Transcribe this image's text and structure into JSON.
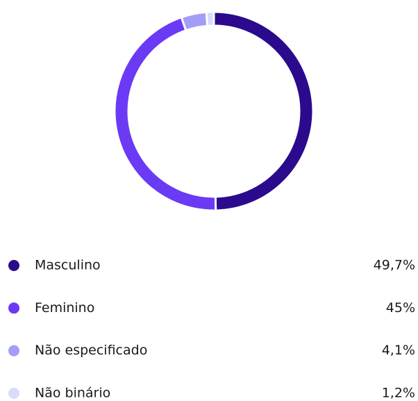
{
  "chart_data": {
    "type": "donut",
    "categories": [
      "Masculino",
      "Feminino",
      "Não especificado",
      "Não binário"
    ],
    "values": [
      49.7,
      45,
      4.1,
      1.2
    ],
    "value_labels": [
      "49,7%",
      "45%",
      "4,1%",
      "1,2%"
    ],
    "colors": [
      "#2b0a8e",
      "#6a3af5",
      "#a39df8",
      "#d7dbfc"
    ]
  }
}
